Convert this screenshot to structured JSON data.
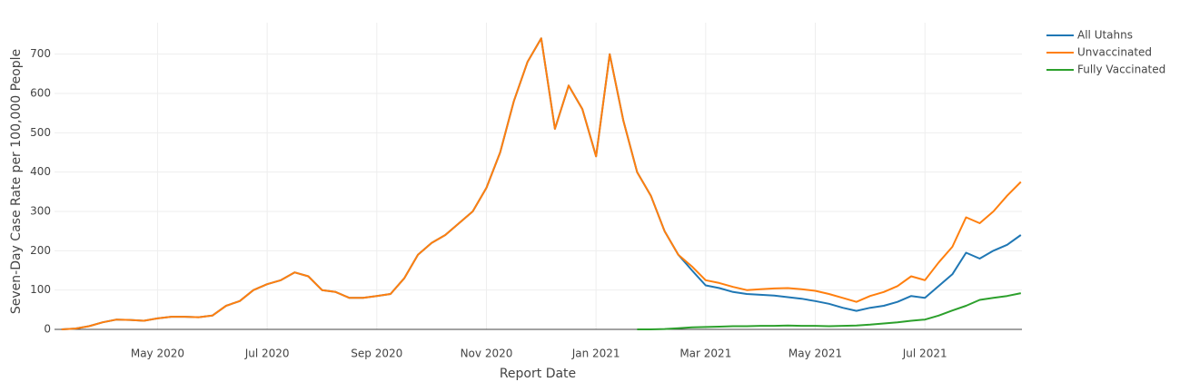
{
  "chart_data": {
    "type": "line",
    "xlabel": "Report Date",
    "ylabel": "Seven-Day Case Rate per 100,000 People",
    "x": [
      2.25,
      2.5,
      2.75,
      3,
      3.25,
      3.5,
      3.75,
      4,
      4.25,
      4.5,
      4.75,
      5,
      5.25,
      5.5,
      5.75,
      6,
      6.25,
      6.5,
      6.75,
      7,
      7.25,
      7.5,
      7.75,
      8,
      8.25,
      8.5,
      8.75,
      9,
      9.25,
      9.5,
      9.75,
      10,
      10.25,
      10.5,
      10.75,
      11,
      11.25,
      11.5,
      11.75,
      12,
      12.25,
      12.5,
      12.75,
      13,
      13.25,
      13.5,
      13.75,
      14,
      14.25,
      14.5,
      14.75,
      15,
      15.25,
      15.5,
      15.75,
      16,
      16.25,
      16.5,
      16.75,
      17,
      17.25,
      17.5,
      17.75,
      18,
      18.25,
      18.5,
      18.75,
      19,
      19.25,
      19.5,
      19.75
    ],
    "series": [
      {
        "name": "All Utahns",
        "color": "#1f77b4",
        "values": [
          0,
          2,
          8,
          18,
          25,
          24,
          22,
          28,
          32,
          32,
          31,
          35,
          60,
          72,
          100,
          115,
          125,
          145,
          135,
          100,
          95,
          80,
          80,
          85,
          90,
          130,
          190,
          220,
          240,
          270,
          300,
          360,
          450,
          580,
          680,
          740,
          510,
          620,
          560,
          440,
          700,
          530,
          400,
          340,
          250,
          190,
          150,
          112,
          105,
          95,
          90,
          88,
          86,
          82,
          78,
          72,
          65,
          55,
          47,
          55,
          60,
          70,
          85,
          80,
          110,
          140,
          195,
          180,
          200,
          215,
          240
        ]
      },
      {
        "name": "Unvaccinated",
        "color": "#ff7f0e",
        "values": [
          0,
          2,
          8,
          18,
          25,
          24,
          22,
          28,
          32,
          32,
          31,
          35,
          60,
          72,
          100,
          115,
          125,
          145,
          135,
          100,
          95,
          80,
          80,
          85,
          90,
          130,
          190,
          220,
          240,
          270,
          300,
          360,
          450,
          580,
          680,
          740,
          510,
          620,
          560,
          440,
          700,
          530,
          400,
          340,
          250,
          190,
          160,
          125,
          118,
          108,
          100,
          102,
          104,
          105,
          102,
          98,
          90,
          80,
          70,
          85,
          95,
          110,
          135,
          125,
          170,
          210,
          285,
          270,
          300,
          340,
          375
        ]
      },
      {
        "name": "Fully Vaccinated",
        "color": "#2ca02c",
        "values": [
          null,
          null,
          null,
          null,
          null,
          null,
          null,
          null,
          null,
          null,
          null,
          null,
          null,
          null,
          null,
          null,
          null,
          null,
          null,
          null,
          null,
          null,
          null,
          null,
          null,
          null,
          null,
          null,
          null,
          null,
          null,
          null,
          null,
          null,
          null,
          null,
          null,
          null,
          null,
          null,
          null,
          null,
          0,
          0,
          1,
          3,
          5,
          6,
          7,
          8,
          8,
          9,
          9,
          10,
          9,
          9,
          8,
          9,
          10,
          12,
          15,
          18,
          22,
          25,
          35,
          48,
          60,
          75,
          80,
          85,
          92
        ]
      }
    ],
    "xlim": [
      2.12,
      19.77
    ],
    "xticks": [
      {
        "value": 4,
        "label": "May 2020"
      },
      {
        "value": 6,
        "label": "Jul 2020"
      },
      {
        "value": 8,
        "label": "Sep 2020"
      },
      {
        "value": 10,
        "label": "Nov 2020"
      },
      {
        "value": 12,
        "label": "Jan 2021"
      },
      {
        "value": 14,
        "label": "Mar 2021"
      },
      {
        "value": 16,
        "label": "May 2021"
      },
      {
        "value": 18,
        "label": "Jul 2021"
      }
    ],
    "ylim": [
      0,
      780
    ],
    "yticks": [
      0,
      100,
      200,
      300,
      400,
      500,
      600,
      700
    ],
    "grid": true,
    "legend": "top-right"
  }
}
